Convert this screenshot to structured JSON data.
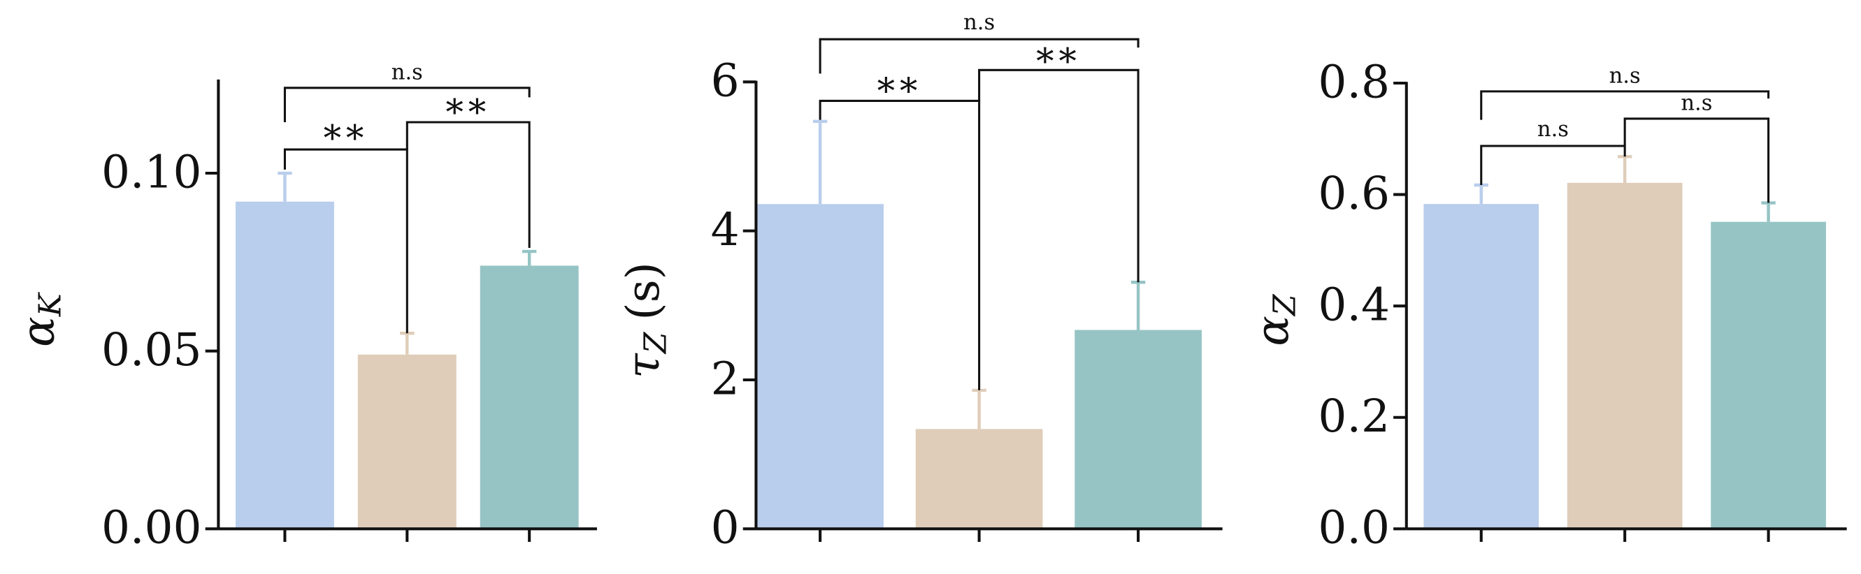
{
  "chart_data": [
    {
      "type": "bar",
      "ylabel": {
        "symbol": "α",
        "subscript": "K"
      },
      "categories": [
        null,
        null,
        null
      ],
      "values": [
        0.092,
        0.049,
        0.074
      ],
      "errors": [
        0.008,
        0.006,
        0.004
      ],
      "colors": [
        "#b9cdec",
        "#dfcdb9",
        "#96c4c4"
      ],
      "ylim": [
        0,
        0.126
      ],
      "yticks": [
        {
          "value": 0,
          "label": "0.00"
        },
        {
          "value": 0.05,
          "label": "0.05"
        },
        {
          "value": 0.1,
          "label": "0.10"
        }
      ],
      "annotations": [
        {
          "label": "n.s",
          "between": [
            0,
            2
          ]
        },
        {
          "label": "**",
          "between": [
            0,
            1
          ]
        },
        {
          "label": "**",
          "between": [
            1,
            2
          ]
        }
      ]
    },
    {
      "type": "bar",
      "ylabel": {
        "symbol": "τ",
        "subscript": "Z",
        "unit": "(s)"
      },
      "categories": [
        null,
        null,
        null
      ],
      "values": [
        4.36,
        1.34,
        2.67
      ],
      "errors": [
        1.11,
        0.52,
        0.64
      ],
      "colors": [
        "#b9cdec",
        "#dfcdb9",
        "#96c4c4"
      ],
      "ylim": [
        0,
        6
      ],
      "yticks": [
        0,
        2,
        4,
        6
      ],
      "annotations": [
        {
          "label": "n.s",
          "between": [
            0,
            2
          ]
        },
        {
          "label": "**",
          "between": [
            0,
            1
          ]
        },
        {
          "label": "**",
          "between": [
            1,
            2
          ]
        }
      ]
    },
    {
      "type": "bar",
      "ylabel": {
        "symbol": "α",
        "subscript": "Z"
      },
      "categories": [
        null,
        null,
        null
      ],
      "values": [
        0.583,
        0.621,
        0.551
      ],
      "errors": [
        0.034,
        0.047,
        0.034
      ],
      "colors": [
        "#b9cdec",
        "#dfcdb9",
        "#96c4c4"
      ],
      "ylim": [
        0,
        0.8
      ],
      "yticks": [
        {
          "value": 0,
          "label": "0.0"
        },
        {
          "value": 0.2,
          "label": "0.2"
        },
        {
          "value": 0.4,
          "label": "0.4"
        },
        {
          "value": 0.6,
          "label": "0.6"
        },
        {
          "value": 0.8,
          "label": "0.8"
        }
      ],
      "annotations": [
        {
          "label": "n.s",
          "between": [
            0,
            2
          ]
        },
        {
          "label": "n.s",
          "between": [
            0,
            1
          ]
        },
        {
          "label": "n.s",
          "between": [
            1,
            2
          ]
        }
      ]
    }
  ]
}
